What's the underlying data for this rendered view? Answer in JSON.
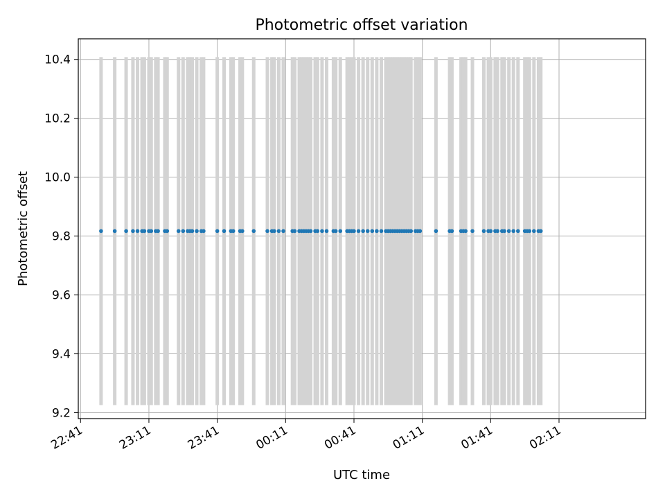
{
  "chart_data": {
    "type": "scatter",
    "title": "Photometric offset variation",
    "xlabel": "UTC time",
    "ylabel": "Photometric offset",
    "xlim": [
      "22:40",
      "02:49"
    ],
    "ylim": [
      9.18,
      10.47
    ],
    "x_ticks": [
      "22:41",
      "23:11",
      "23:41",
      "00:11",
      "00:41",
      "01:11",
      "01:41",
      "02:11"
    ],
    "y_ticks": [
      9.2,
      9.4,
      9.6,
      9.8,
      10.0,
      10.2,
      10.4
    ],
    "grid": true,
    "marker_color": "#1f77b4",
    "errorbar_color": "#d3d3d3",
    "error_bounds": [
      9.226,
      10.408
    ],
    "series": [
      {
        "x": [
          "22:50",
          "22:56",
          "23:01",
          "23:04",
          "23:06",
          "23:08",
          "23:09",
          "23:11",
          "23:12",
          "23:14",
          "23:15",
          "23:18",
          "23:19",
          "23:24",
          "23:26",
          "23:28",
          "23:29",
          "23:30",
          "23:32",
          "23:34",
          "23:35",
          "23:41",
          "23:44",
          "23:47",
          "23:48",
          "23:51",
          "23:52",
          "23:57",
          "24:03",
          "24:05",
          "24:06",
          "24:08",
          "24:10",
          "24:14",
          "24:15",
          "24:17",
          "24:18",
          "24:19",
          "24:20",
          "24:21",
          "24:22",
          "24:24",
          "24:25",
          "24:27",
          "24:29",
          "24:32",
          "24:33",
          "24:35",
          "24:38",
          "24:39",
          "24:40",
          "24:41",
          "24:43",
          "24:45",
          "24:47",
          "24:49",
          "24:51",
          "24:53",
          "24:55",
          "24:56",
          "24:57",
          "24:58",
          "24:59",
          "25:00",
          "25:01",
          "25:02",
          "25:03",
          "25:04",
          "25:05",
          "25:06",
          "25:08",
          "25:09",
          "25:10",
          "25:17",
          "25:23",
          "25:24",
          "25:28",
          "25:29",
          "25:30",
          "25:33",
          "25:38",
          "25:40",
          "25:41",
          "25:43",
          "25:44",
          "25:46",
          "25:47",
          "25:49",
          "25:51",
          "25:53",
          "25:56",
          "25:57",
          "25:58",
          "26:00",
          "26:02",
          "26:03"
        ],
        "y": [
          9.817,
          9.817,
          9.817,
          9.817,
          9.817,
          9.817,
          9.817,
          9.817,
          9.817,
          9.817,
          9.817,
          9.817,
          9.817,
          9.817,
          9.817,
          9.817,
          9.817,
          9.817,
          9.817,
          9.817,
          9.817,
          9.817,
          9.817,
          9.817,
          9.817,
          9.817,
          9.817,
          9.817,
          9.817,
          9.817,
          9.817,
          9.817,
          9.817,
          9.817,
          9.817,
          9.817,
          9.817,
          9.817,
          9.817,
          9.817,
          9.817,
          9.817,
          9.817,
          9.817,
          9.817,
          9.817,
          9.817,
          9.817,
          9.817,
          9.817,
          9.817,
          9.817,
          9.817,
          9.817,
          9.817,
          9.817,
          9.817,
          9.817,
          9.817,
          9.817,
          9.817,
          9.817,
          9.817,
          9.817,
          9.817,
          9.817,
          9.817,
          9.817,
          9.817,
          9.817,
          9.817,
          9.817,
          9.817,
          9.817,
          9.817,
          9.817,
          9.817,
          9.817,
          9.817,
          9.817,
          9.817,
          9.817,
          9.817,
          9.817,
          9.817,
          9.817,
          9.817,
          9.817,
          9.817,
          9.817,
          9.817,
          9.817,
          9.817,
          9.817,
          9.817,
          9.817
        ]
      }
    ]
  }
}
